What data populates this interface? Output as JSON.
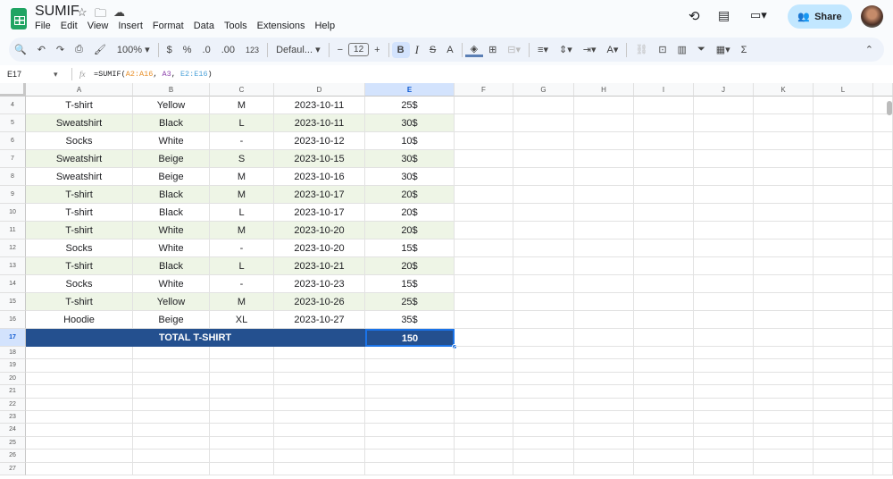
{
  "app": {
    "title": "SUMIF",
    "menu": [
      "File",
      "Edit",
      "View",
      "Insert",
      "Format",
      "Data",
      "Tools",
      "Extensions",
      "Help"
    ],
    "share_label": "Share"
  },
  "toolbar": {
    "zoom": "100%",
    "currency": "$",
    "percent": "%",
    "dec_decrease": ".0",
    "dec_increase": ".00",
    "format_123": "123",
    "font": "Defaul...",
    "font_size": "12",
    "bold": "B",
    "italic": "I"
  },
  "formula_bar": {
    "cell_ref": "E17",
    "fx": "fx",
    "formula_parts": [
      {
        "text": "=SUMIF(",
        "color": "#202124"
      },
      {
        "text": "A2:A16",
        "color": "#e8912d"
      },
      {
        "text": ", ",
        "color": "#202124"
      },
      {
        "text": "A3",
        "color": "#8e44ad"
      },
      {
        "text": ", ",
        "color": "#202124"
      },
      {
        "text": "E2:E16",
        "color": "#4fa3d9"
      },
      {
        "text": ")",
        "color": "#202124"
      }
    ]
  },
  "columns": [
    "A",
    "B",
    "C",
    "D",
    "E",
    "F",
    "G",
    "H",
    "I",
    "J",
    "K",
    "L"
  ],
  "selected_column": "E",
  "rows": [
    {
      "n": "4",
      "cells": [
        "T-shirt",
        "Yellow",
        "M",
        "2023-10-11",
        "25$"
      ]
    },
    {
      "n": "5",
      "cells": [
        "Sweatshirt",
        "Black",
        "L",
        "2023-10-11",
        "30$"
      ]
    },
    {
      "n": "6",
      "cells": [
        "Socks",
        "White",
        "-",
        "2023-10-12",
        "10$"
      ]
    },
    {
      "n": "7",
      "cells": [
        "Sweatshirt",
        "Beige",
        "S",
        "2023-10-15",
        "30$"
      ]
    },
    {
      "n": "8",
      "cells": [
        "Sweatshirt",
        "Beige",
        "M",
        "2023-10-16",
        "30$"
      ]
    },
    {
      "n": "9",
      "cells": [
        "T-shirt",
        "Black",
        "M",
        "2023-10-17",
        "20$"
      ]
    },
    {
      "n": "10",
      "cells": [
        "T-shirt",
        "Black",
        "L",
        "2023-10-17",
        "20$"
      ]
    },
    {
      "n": "11",
      "cells": [
        "T-shirt",
        "White",
        "M",
        "2023-10-20",
        "20$"
      ]
    },
    {
      "n": "12",
      "cells": [
        "Socks",
        "White",
        "-",
        "2023-10-20",
        "15$"
      ]
    },
    {
      "n": "13",
      "cells": [
        "T-shirt",
        "Black",
        "L",
        "2023-10-21",
        "20$"
      ]
    },
    {
      "n": "14",
      "cells": [
        "Socks",
        "White",
        "-",
        "2023-10-23",
        "15$"
      ]
    },
    {
      "n": "15",
      "cells": [
        "T-shirt",
        "Yellow",
        "M",
        "2023-10-26",
        "25$"
      ]
    },
    {
      "n": "16",
      "cells": [
        "Hoodie",
        "Beige",
        "XL",
        "2023-10-27",
        "35$"
      ]
    }
  ],
  "total": {
    "n": "17",
    "label": "TOTAL T-SHIRT",
    "value": "150"
  },
  "empty_rows": [
    "18",
    "19",
    "20",
    "21",
    "22",
    "23",
    "24",
    "25",
    "26",
    "27"
  ],
  "colors": {
    "band": "#eef5e6",
    "total_bg": "#24508f",
    "selection": "#1a73e8"
  }
}
